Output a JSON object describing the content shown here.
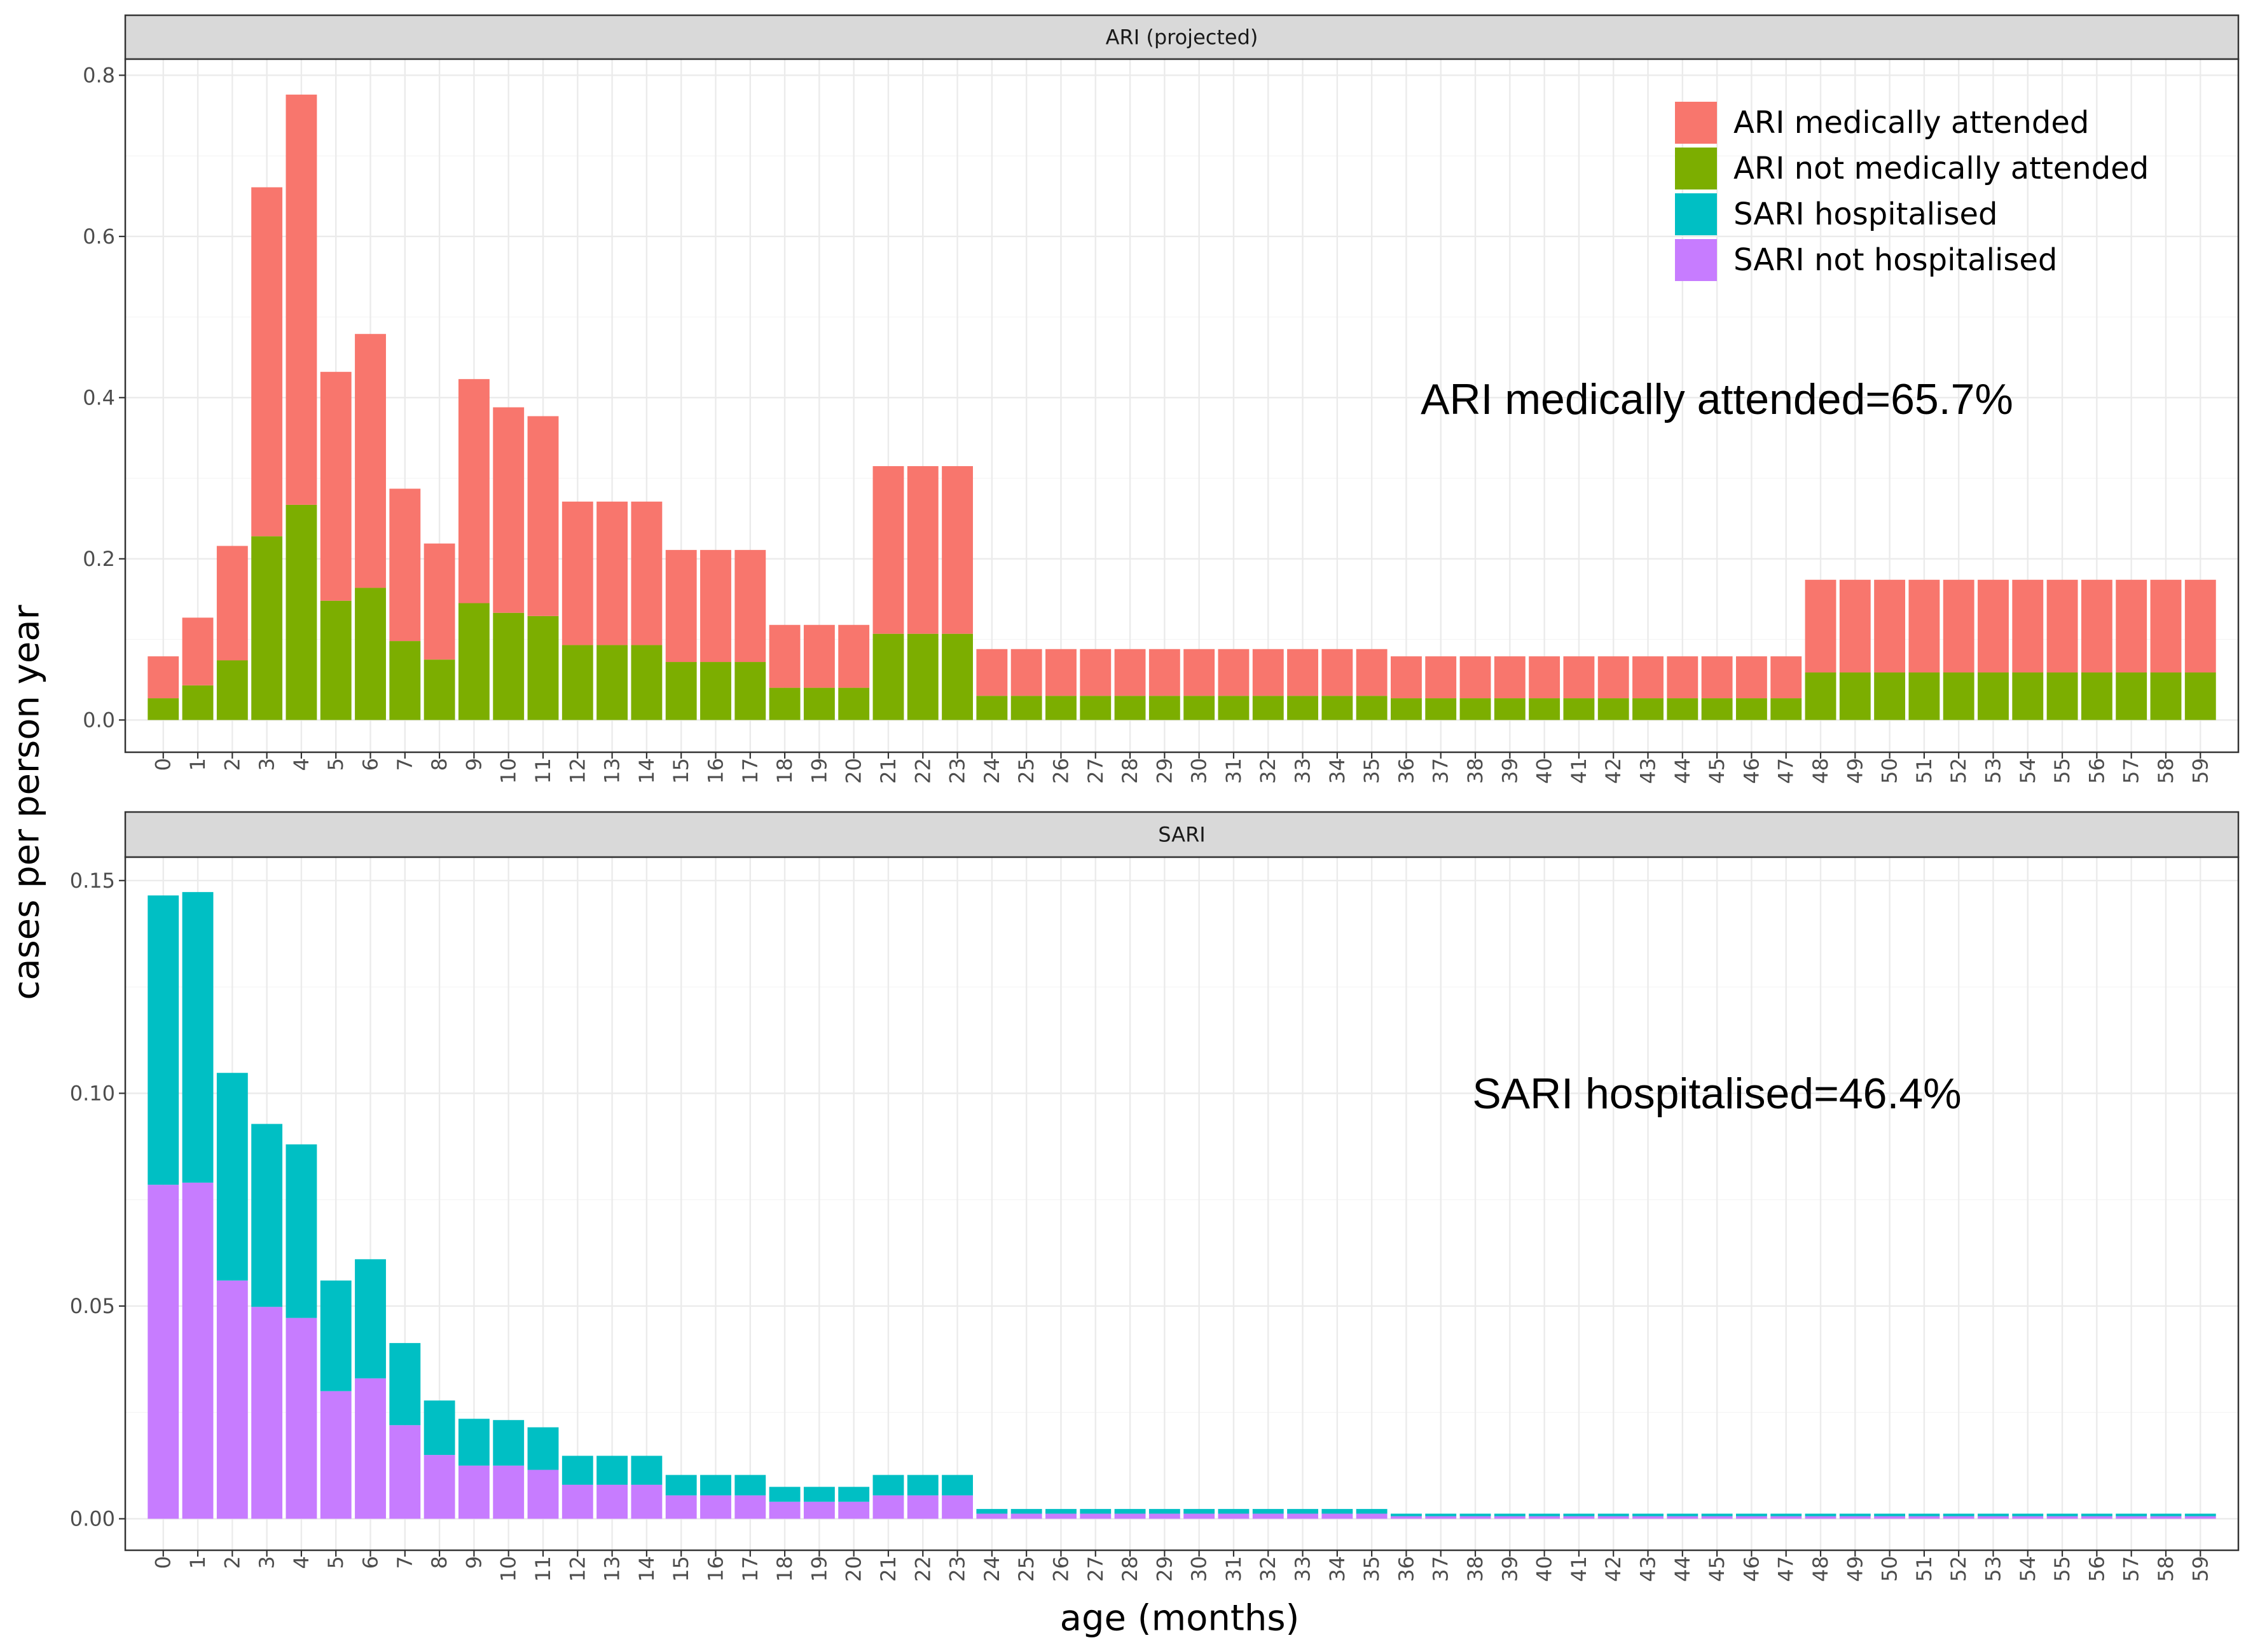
{
  "chart_data": {
    "type": "bar",
    "stacked": true,
    "xlabel": "age (months)",
    "ylabel": "cases per person year",
    "categories": [
      "0",
      "1",
      "2",
      "3",
      "4",
      "5",
      "6",
      "7",
      "8",
      "9",
      "10",
      "11",
      "12",
      "13",
      "14",
      "15",
      "16",
      "17",
      "18",
      "19",
      "20",
      "21",
      "22",
      "23",
      "24",
      "25",
      "26",
      "27",
      "28",
      "29",
      "30",
      "31",
      "32",
      "33",
      "34",
      "35",
      "36",
      "37",
      "38",
      "39",
      "40",
      "41",
      "42",
      "43",
      "44",
      "45",
      "46",
      "47",
      "48",
      "49",
      "50",
      "51",
      "52",
      "53",
      "54",
      "55",
      "56",
      "57",
      "58",
      "59"
    ],
    "legend": {
      "position": "top-right",
      "entries": [
        {
          "name": "ARI medically attended",
          "color": "#F8766D"
        },
        {
          "name": "ARI not medically attended",
          "color": "#7CAE00"
        },
        {
          "name": "SARI hospitalised",
          "color": "#00BFC4"
        },
        {
          "name": "SARI not hospitalised",
          "color": "#C77CFF"
        }
      ]
    },
    "panels": [
      {
        "title": "ARI (projected)",
        "ylim": [
          -0.04,
          0.82
        ],
        "yticks": [
          "0.0",
          "0.2",
          "0.4",
          "0.6",
          "0.8"
        ],
        "ytick_values": [
          0,
          0.2,
          0.4,
          0.6,
          0.8
        ],
        "annotation": "ARI medically attended=65.7%",
        "series": [
          {
            "name": "ARI not medically attended",
            "color": "#7CAE00",
            "values": [
              0.027,
              0.043,
              0.074,
              0.228,
              0.267,
              0.148,
              0.164,
              0.098,
              0.075,
              0.145,
              0.133,
              0.129,
              0.093,
              0.093,
              0.093,
              0.072,
              0.072,
              0.072,
              0.04,
              0.04,
              0.04,
              0.107,
              0.107,
              0.107,
              0.03,
              0.03,
              0.03,
              0.03,
              0.03,
              0.03,
              0.03,
              0.03,
              0.03,
              0.03,
              0.03,
              0.03,
              0.027,
              0.027,
              0.027,
              0.027,
              0.027,
              0.027,
              0.027,
              0.027,
              0.027,
              0.027,
              0.027,
              0.027,
              0.059,
              0.059,
              0.059,
              0.059,
              0.059,
              0.059,
              0.059,
              0.059,
              0.059,
              0.059,
              0.059,
              0.059
            ]
          },
          {
            "name": "ARI medically attended",
            "color": "#F8766D",
            "values": [
              0.052,
              0.084,
              0.142,
              0.433,
              0.509,
              0.284,
              0.315,
              0.189,
              0.144,
              0.278,
              0.255,
              0.248,
              0.178,
              0.178,
              0.178,
              0.139,
              0.139,
              0.139,
              0.078,
              0.078,
              0.078,
              0.208,
              0.208,
              0.208,
              0.058,
              0.058,
              0.058,
              0.058,
              0.058,
              0.058,
              0.058,
              0.058,
              0.058,
              0.058,
              0.058,
              0.058,
              0.052,
              0.052,
              0.052,
              0.052,
              0.052,
              0.052,
              0.052,
              0.052,
              0.052,
              0.052,
              0.052,
              0.052,
              0.115,
              0.115,
              0.115,
              0.115,
              0.115,
              0.115,
              0.115,
              0.115,
              0.115,
              0.115,
              0.115,
              0.115
            ]
          }
        ]
      },
      {
        "title": "SARI",
        "ylim": [
          -0.0074,
          0.1555
        ],
        "yticks": [
          "0.00",
          "0.05",
          "0.10",
          "0.15"
        ],
        "ytick_values": [
          0,
          0.05,
          0.1,
          0.15
        ],
        "annotation": "SARI hospitalised=46.4%",
        "series": [
          {
            "name": "SARI not hospitalised",
            "color": "#C77CFF",
            "values": [
              0.0785,
              0.079,
              0.056,
              0.0498,
              0.0472,
              0.03,
              0.033,
              0.022,
              0.015,
              0.0125,
              0.0125,
              0.0115,
              0.008,
              0.008,
              0.008,
              0.0055,
              0.0055,
              0.0055,
              0.004,
              0.004,
              0.004,
              0.0055,
              0.0055,
              0.0055,
              0.0012,
              0.0012,
              0.0012,
              0.0012,
              0.0012,
              0.0012,
              0.0012,
              0.0012,
              0.0012,
              0.0012,
              0.0012,
              0.0012,
              0.0006,
              0.0006,
              0.0006,
              0.0006,
              0.0006,
              0.0006,
              0.0006,
              0.0006,
              0.0006,
              0.0006,
              0.0006,
              0.0006,
              0.0006,
              0.0006,
              0.0006,
              0.0006,
              0.0006,
              0.0006,
              0.0006,
              0.0006,
              0.0006,
              0.0006,
              0.0006,
              0.0006
            ]
          },
          {
            "name": "SARI hospitalised",
            "color": "#00BFC4",
            "values": [
              0.068,
              0.0683,
              0.0488,
              0.043,
              0.0408,
              0.026,
              0.028,
              0.0193,
              0.0128,
              0.011,
              0.0107,
              0.01,
              0.0068,
              0.0068,
              0.0068,
              0.0048,
              0.0048,
              0.0048,
              0.0035,
              0.0035,
              0.0035,
              0.0048,
              0.0048,
              0.0048,
              0.0011,
              0.0011,
              0.0011,
              0.0011,
              0.0011,
              0.0011,
              0.0011,
              0.0011,
              0.0011,
              0.0011,
              0.0011,
              0.0011,
              0.0006,
              0.0006,
              0.0006,
              0.0006,
              0.0006,
              0.0006,
              0.0006,
              0.0006,
              0.0006,
              0.0006,
              0.0006,
              0.0006,
              0.0006,
              0.0006,
              0.0006,
              0.0006,
              0.0006,
              0.0006,
              0.0006,
              0.0006,
              0.0006,
              0.0006,
              0.0006,
              0.0006
            ]
          }
        ]
      }
    ]
  }
}
